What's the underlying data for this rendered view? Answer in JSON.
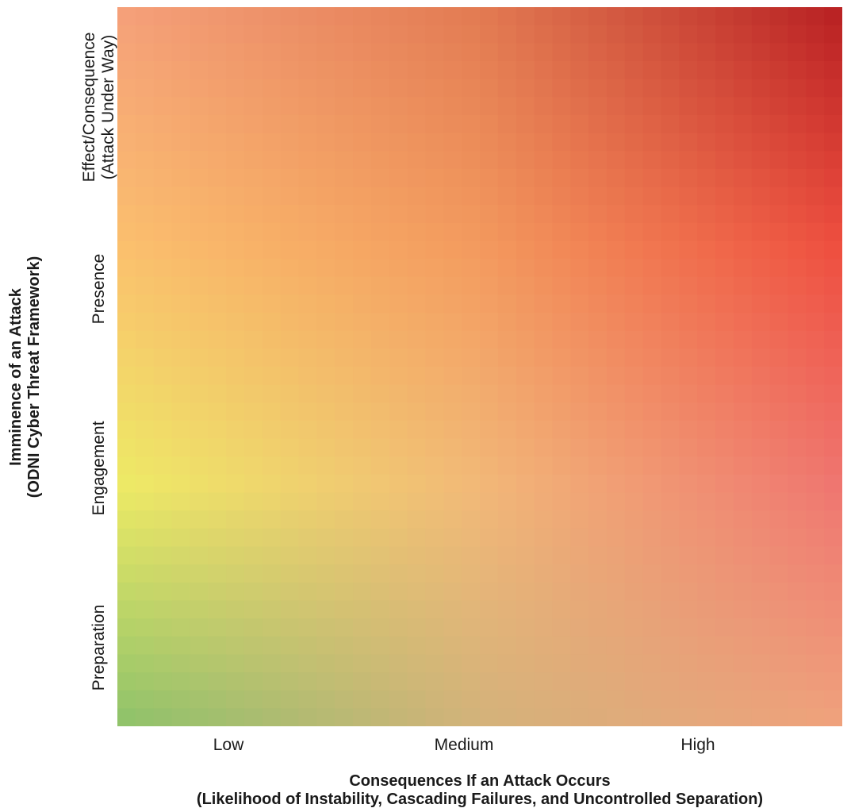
{
  "chart_data": {
    "type": "heatmap",
    "title": "",
    "xlabel": {
      "line1": "Consequences If an Attack Occurs",
      "line2": "(Likelihood of Instability, Cascading Failures, and Uncontrolled Separation)"
    },
    "ylabel": {
      "line1": "Imminence of an Attack",
      "line2": "(ODNI Cyber Threat Framework)"
    },
    "x_categories": [
      "Low",
      "Medium",
      "High"
    ],
    "y_categories": [
      "Preparation",
      "Engagement",
      "Presence",
      {
        "line1": "Effect/Consequence",
        "line2": "(Attack Under Way)"
      }
    ],
    "gradient": "continuous color gradient from green (low consequence, low imminence) through yellow and orange to red (high consequence, high imminence)",
    "colors": {
      "green_bottom_left": "#8CC26A",
      "yellow_left_mid": "#EDEB65",
      "peach_left_top": "#F5A07A",
      "orange_center": "#F39A5E",
      "red_top_right": "#B71F22",
      "red_right_upper": "#EE4E3F",
      "salmon_right_mid": "#EF7570",
      "salmon_bottom_right": "#F0A27C",
      "tan_bottom_mid": "#D3B27A"
    },
    "grid": false,
    "legend": "none"
  }
}
